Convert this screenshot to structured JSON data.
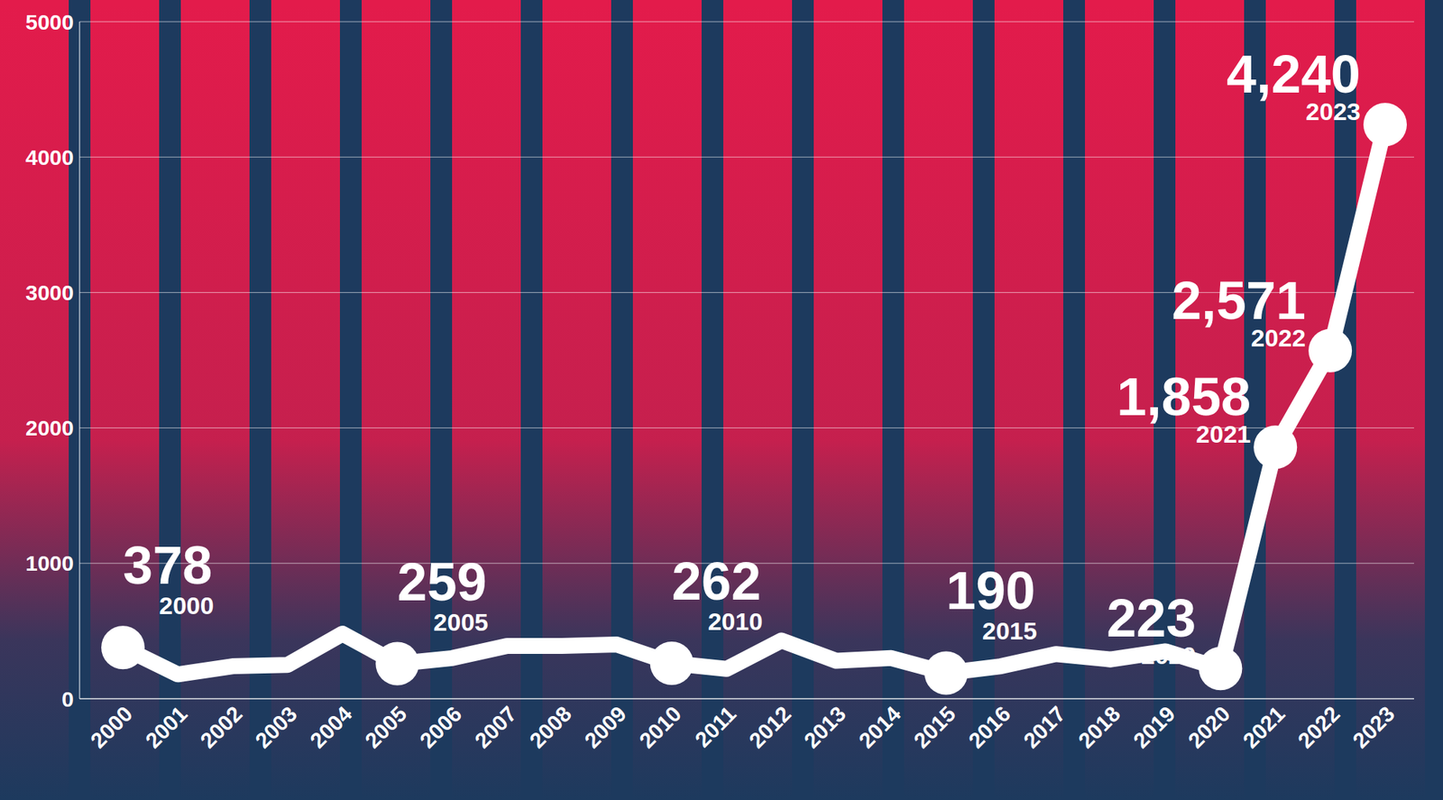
{
  "chart_data": {
    "type": "line",
    "categories": [
      "2000",
      "2001",
      "2002",
      "2003",
      "2004",
      "2005",
      "2006",
      "2007",
      "2008",
      "2009",
      "2010",
      "2011",
      "2012",
      "2013",
      "2014",
      "2015",
      "2016",
      "2017",
      "2018",
      "2019",
      "2020",
      "2021",
      "2022",
      "2023"
    ],
    "values": [
      378,
      180,
      240,
      250,
      480,
      259,
      300,
      390,
      390,
      400,
      262,
      220,
      430,
      280,
      300,
      190,
      240,
      330,
      290,
      350,
      223,
      1858,
      2571,
      4240
    ],
    "value_labels": [
      "378",
      null,
      null,
      null,
      null,
      "259",
      null,
      null,
      null,
      null,
      "262",
      null,
      null,
      null,
      null,
      "190",
      null,
      null,
      null,
      null,
      "223",
      "1,858",
      "2,571",
      "4,240"
    ],
    "data_labels": true,
    "color": "#ffffff",
    "ylim": [
      0,
      5000
    ],
    "yticks": [
      0,
      1000,
      2000,
      3000,
      4000,
      5000
    ],
    "grid": true,
    "tick_labels": true
  }
}
